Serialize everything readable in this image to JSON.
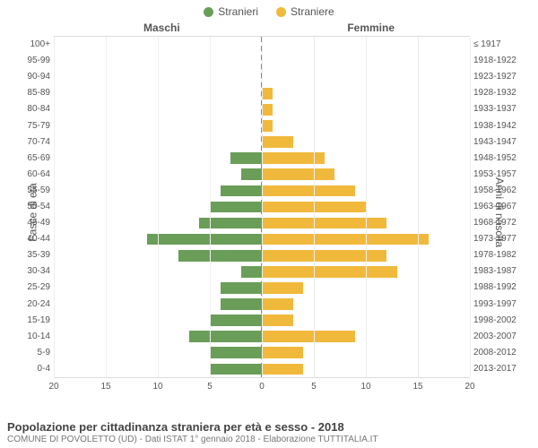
{
  "legend": {
    "male": {
      "label": "Stranieri",
      "color": "#6a9e58"
    },
    "female": {
      "label": "Straniere",
      "color": "#f1b93c"
    }
  },
  "header": {
    "left_col": "Maschi",
    "right_col": "Femmine"
  },
  "axis": {
    "y_left_label": "Fasce di età",
    "y_right_label": "Anni di nascita",
    "x_max": 20,
    "x_ticks": [
      20,
      15,
      10,
      5,
      0,
      5,
      10,
      15,
      20
    ]
  },
  "rows": [
    {
      "age": "100+",
      "year": "≤ 1917",
      "m": 0,
      "f": 0
    },
    {
      "age": "95-99",
      "year": "1918-1922",
      "m": 0,
      "f": 0
    },
    {
      "age": "90-94",
      "year": "1923-1927",
      "m": 0,
      "f": 0
    },
    {
      "age": "85-89",
      "year": "1928-1932",
      "m": 0,
      "f": 1
    },
    {
      "age": "80-84",
      "year": "1933-1937",
      "m": 0,
      "f": 1
    },
    {
      "age": "75-79",
      "year": "1938-1942",
      "m": 0,
      "f": 1
    },
    {
      "age": "70-74",
      "year": "1943-1947",
      "m": 0,
      "f": 3
    },
    {
      "age": "65-69",
      "year": "1948-1952",
      "m": 3,
      "f": 6
    },
    {
      "age": "60-64",
      "year": "1953-1957",
      "m": 2,
      "f": 7
    },
    {
      "age": "55-59",
      "year": "1958-1962",
      "m": 4,
      "f": 9
    },
    {
      "age": "50-54",
      "year": "1963-1967",
      "m": 5,
      "f": 10
    },
    {
      "age": "45-49",
      "year": "1968-1972",
      "m": 6,
      "f": 12
    },
    {
      "age": "40-44",
      "year": "1973-1977",
      "m": 11,
      "f": 16
    },
    {
      "age": "35-39",
      "year": "1978-1982",
      "m": 8,
      "f": 12
    },
    {
      "age": "30-34",
      "year": "1983-1987",
      "m": 2,
      "f": 13
    },
    {
      "age": "25-29",
      "year": "1988-1992",
      "m": 4,
      "f": 4
    },
    {
      "age": "20-24",
      "year": "1993-1997",
      "m": 4,
      "f": 3
    },
    {
      "age": "15-19",
      "year": "1998-2002",
      "m": 5,
      "f": 3
    },
    {
      "age": "10-14",
      "year": "2003-2007",
      "m": 7,
      "f": 9
    },
    {
      "age": "5-9",
      "year": "2008-2012",
      "m": 5,
      "f": 4
    },
    {
      "age": "0-4",
      "year": "2013-2017",
      "m": 5,
      "f": 4
    }
  ],
  "footer": {
    "title": "Popolazione per cittadinanza straniera per età e sesso - 2018",
    "subtitle": "COMUNE DI POVOLETTO (UD) - Dati ISTAT 1° gennaio 2018 - Elaborazione TUTTITALIA.IT"
  },
  "style": {
    "grid_color": "#eeeeee",
    "text_color": "#555555",
    "center_line_color": "#888888"
  }
}
